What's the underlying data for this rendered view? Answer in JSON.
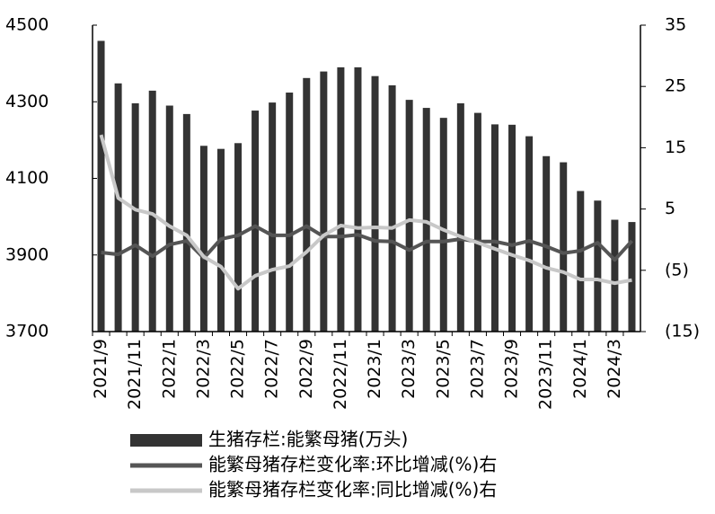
{
  "chart_data": {
    "type": "bar",
    "categories": [
      "2021/9",
      null,
      "2021/11",
      null,
      "2022/1",
      null,
      "2022/3",
      null,
      "2022/5",
      null,
      "2022/7",
      null,
      "2022/9",
      null,
      "2022/11",
      null,
      "2023/1",
      null,
      "2023/3",
      null,
      "2023/5",
      null,
      "2023/7",
      null,
      "2023/9",
      null,
      "2023/11",
      null,
      "2024/1",
      null,
      "2024/3",
      null
    ],
    "ylim": [
      3700,
      4500
    ],
    "yticks": [
      3700,
      3900,
      4100,
      4300,
      4500
    ],
    "y2lim": [
      -15,
      35
    ],
    "y2ticks": [
      {
        "value": -15,
        "label": "(15)"
      },
      {
        "value": -5,
        "label": "(5)"
      },
      5,
      15,
      25,
      35
    ],
    "series": [
      {
        "name": "生猪存栏:能繁母猪(万头)",
        "type": "bar",
        "color": "#333333",
        "values": [
          4459,
          4348,
          4296,
          4329,
          4290,
          4268,
          4185,
          4177,
          4192,
          4277,
          4298,
          4324,
          4362,
          4379,
          4390,
          4390,
          4367,
          4343,
          4305,
          4284,
          4258,
          4296,
          4271,
          4241,
          4240,
          4210,
          4158,
          4142,
          4067,
          4042,
          3992,
          3986
        ]
      },
      {
        "name": "能繁母猪存栏变化率:环比增减(%)右",
        "type": "line",
        "axis": "y2",
        "color": "#555555",
        "values": [
          -2.1,
          -2.4,
          -0.9,
          -2.7,
          -0.8,
          -0.2,
          -3.0,
          0.1,
          0.7,
          2.2,
          0.7,
          0.7,
          2.2,
          0.5,
          0.5,
          0.8,
          -0.2,
          -0.3,
          -1.7,
          -0.3,
          -0.3,
          0.1,
          -0.3,
          -0.3,
          -0.9,
          -0.2,
          -1.1,
          -2.2,
          -1.8,
          -0.5,
          -3.3,
          -0.2
        ]
      },
      {
        "name": "能繁母猪存栏变化率:同比增减(%)右",
        "type": "line",
        "axis": "y2",
        "color": "#c8c8c8",
        "values": [
          17.1,
          6.8,
          4.9,
          4.2,
          2.2,
          0.7,
          -2.8,
          -4.4,
          -8.0,
          -5.9,
          -4.9,
          -4.3,
          -2.0,
          0.7,
          2.3,
          1.9,
          2.0,
          1.9,
          3.2,
          2.9,
          1.6,
          0.5,
          -0.5,
          -1.5,
          -2.5,
          -3.4,
          -4.6,
          -5.3,
          -6.5,
          -6.5,
          -7.1,
          -6.6
        ]
      }
    ]
  }
}
